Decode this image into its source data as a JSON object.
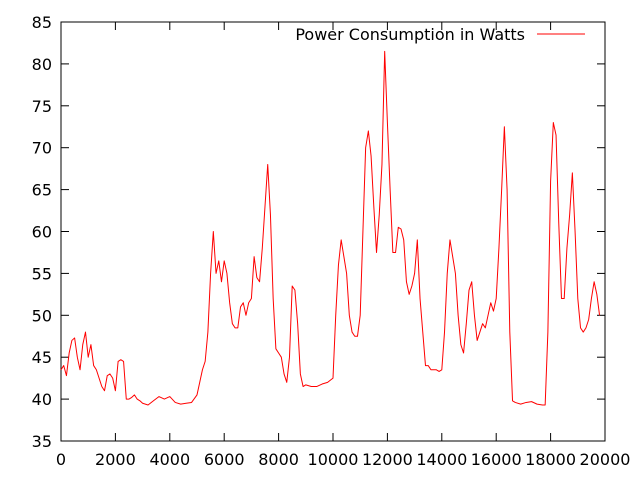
{
  "chart_data": {
    "type": "line",
    "title": "",
    "xlabel": "",
    "ylabel": "",
    "xlim": [
      0,
      20000
    ],
    "ylim": [
      35,
      85
    ],
    "x_ticks": [
      0,
      2000,
      4000,
      6000,
      8000,
      10000,
      12000,
      14000,
      16000,
      18000,
      20000
    ],
    "y_ticks": [
      35,
      40,
      45,
      50,
      55,
      60,
      65,
      70,
      75,
      80,
      85
    ],
    "grid": false,
    "legend_position": "top-right",
    "series": [
      {
        "name": "Power Consumption in Watts",
        "color": "#ff0000",
        "points": [
          [
            0,
            43.5
          ],
          [
            100,
            44
          ],
          [
            200,
            42.8
          ],
          [
            300,
            45.5
          ],
          [
            400,
            47
          ],
          [
            500,
            47.3
          ],
          [
            600,
            45
          ],
          [
            700,
            43.5
          ],
          [
            800,
            46.5
          ],
          [
            900,
            48
          ],
          [
            1000,
            45
          ],
          [
            1100,
            46.5
          ],
          [
            1200,
            44
          ],
          [
            1300,
            43.5
          ],
          [
            1400,
            42.5
          ],
          [
            1500,
            41.5
          ],
          [
            1600,
            41
          ],
          [
            1700,
            42.8
          ],
          [
            1800,
            43
          ],
          [
            1900,
            42.5
          ],
          [
            2000,
            41
          ],
          [
            2100,
            44.5
          ],
          [
            2200,
            44.7
          ],
          [
            2300,
            44.5
          ],
          [
            2400,
            40
          ],
          [
            2500,
            40
          ],
          [
            2600,
            40.2
          ],
          [
            2700,
            40.5
          ],
          [
            2800,
            40
          ],
          [
            2900,
            39.8
          ],
          [
            3000,
            39.5
          ],
          [
            3200,
            39.3
          ],
          [
            3400,
            39.8
          ],
          [
            3600,
            40.3
          ],
          [
            3800,
            40
          ],
          [
            4000,
            40.3
          ],
          [
            4200,
            39.6
          ],
          [
            4400,
            39.4
          ],
          [
            4600,
            39.5
          ],
          [
            4800,
            39.6
          ],
          [
            5000,
            40.5
          ],
          [
            5100,
            42
          ],
          [
            5200,
            43.5
          ],
          [
            5300,
            44.5
          ],
          [
            5400,
            48
          ],
          [
            5500,
            55
          ],
          [
            5600,
            60
          ],
          [
            5700,
            55
          ],
          [
            5800,
            56.5
          ],
          [
            5900,
            54
          ],
          [
            6000,
            56.5
          ],
          [
            6100,
            55
          ],
          [
            6200,
            51.5
          ],
          [
            6300,
            49
          ],
          [
            6400,
            48.5
          ],
          [
            6500,
            48.5
          ],
          [
            6600,
            51
          ],
          [
            6700,
            51.5
          ],
          [
            6800,
            50
          ],
          [
            6900,
            51.5
          ],
          [
            7000,
            52
          ],
          [
            7100,
            57
          ],
          [
            7200,
            54.5
          ],
          [
            7300,
            54
          ],
          [
            7400,
            58
          ],
          [
            7500,
            63
          ],
          [
            7600,
            68
          ],
          [
            7700,
            62
          ],
          [
            7800,
            52
          ],
          [
            7900,
            46
          ],
          [
            8000,
            45.5
          ],
          [
            8100,
            45
          ],
          [
            8200,
            43
          ],
          [
            8300,
            42
          ],
          [
            8400,
            45
          ],
          [
            8500,
            53.5
          ],
          [
            8600,
            53
          ],
          [
            8700,
            49
          ],
          [
            8800,
            43
          ],
          [
            8900,
            41.5
          ],
          [
            9000,
            41.7
          ],
          [
            9200,
            41.5
          ],
          [
            9400,
            41.5
          ],
          [
            9600,
            41.8
          ],
          [
            9800,
            42
          ],
          [
            10000,
            42.5
          ],
          [
            10100,
            50
          ],
          [
            10200,
            56
          ],
          [
            10300,
            59
          ],
          [
            10400,
            57
          ],
          [
            10500,
            55
          ],
          [
            10600,
            50
          ],
          [
            10700,
            48
          ],
          [
            10800,
            47.5
          ],
          [
            10900,
            47.5
          ],
          [
            11000,
            50
          ],
          [
            11100,
            60
          ],
          [
            11200,
            70
          ],
          [
            11300,
            72
          ],
          [
            11400,
            69
          ],
          [
            11500,
            63
          ],
          [
            11600,
            57.5
          ],
          [
            11700,
            62
          ],
          [
            11800,
            68
          ],
          [
            11900,
            81.5
          ],
          [
            12000,
            73
          ],
          [
            12100,
            65
          ],
          [
            12200,
            57.5
          ],
          [
            12300,
            57.5
          ],
          [
            12400,
            60.5
          ],
          [
            12500,
            60.3
          ],
          [
            12600,
            59
          ],
          [
            12700,
            54
          ],
          [
            12800,
            52.5
          ],
          [
            12900,
            53.5
          ],
          [
            13000,
            55
          ],
          [
            13100,
            59
          ],
          [
            13200,
            52
          ],
          [
            13300,
            48
          ],
          [
            13400,
            44
          ],
          [
            13500,
            44
          ],
          [
            13600,
            43.5
          ],
          [
            13700,
            43.5
          ],
          [
            13800,
            43.5
          ],
          [
            13900,
            43.3
          ],
          [
            14000,
            43.5
          ],
          [
            14100,
            48
          ],
          [
            14200,
            55
          ],
          [
            14300,
            59
          ],
          [
            14400,
            57
          ],
          [
            14500,
            55
          ],
          [
            14600,
            50
          ],
          [
            14700,
            46.5
          ],
          [
            14800,
            45.5
          ],
          [
            14900,
            49
          ],
          [
            15000,
            53
          ],
          [
            15100,
            54
          ],
          [
            15200,
            50
          ],
          [
            15300,
            47
          ],
          [
            15400,
            48
          ],
          [
            15500,
            49
          ],
          [
            15600,
            48.5
          ],
          [
            15700,
            50
          ],
          [
            15800,
            51.5
          ],
          [
            15900,
            50.5
          ],
          [
            16000,
            52
          ],
          [
            16100,
            58
          ],
          [
            16200,
            65
          ],
          [
            16300,
            72.5
          ],
          [
            16400,
            65
          ],
          [
            16500,
            48
          ],
          [
            16600,
            39.8
          ],
          [
            16700,
            39.6
          ],
          [
            16900,
            39.4
          ],
          [
            17100,
            39.6
          ],
          [
            17300,
            39.7
          ],
          [
            17500,
            39.4
          ],
          [
            17700,
            39.3
          ],
          [
            17800,
            39.3
          ],
          [
            17900,
            48
          ],
          [
            18000,
            66
          ],
          [
            18100,
            73
          ],
          [
            18200,
            71.5
          ],
          [
            18300,
            61
          ],
          [
            18400,
            52
          ],
          [
            18500,
            52
          ],
          [
            18600,
            58
          ],
          [
            18700,
            62
          ],
          [
            18800,
            67
          ],
          [
            18900,
            60
          ],
          [
            19000,
            52
          ],
          [
            19100,
            48.5
          ],
          [
            19200,
            48
          ],
          [
            19300,
            48.5
          ],
          [
            19400,
            49.5
          ],
          [
            19500,
            52
          ],
          [
            19600,
            54
          ],
          [
            19700,
            52.5
          ],
          [
            19800,
            50
          ]
        ]
      }
    ]
  }
}
